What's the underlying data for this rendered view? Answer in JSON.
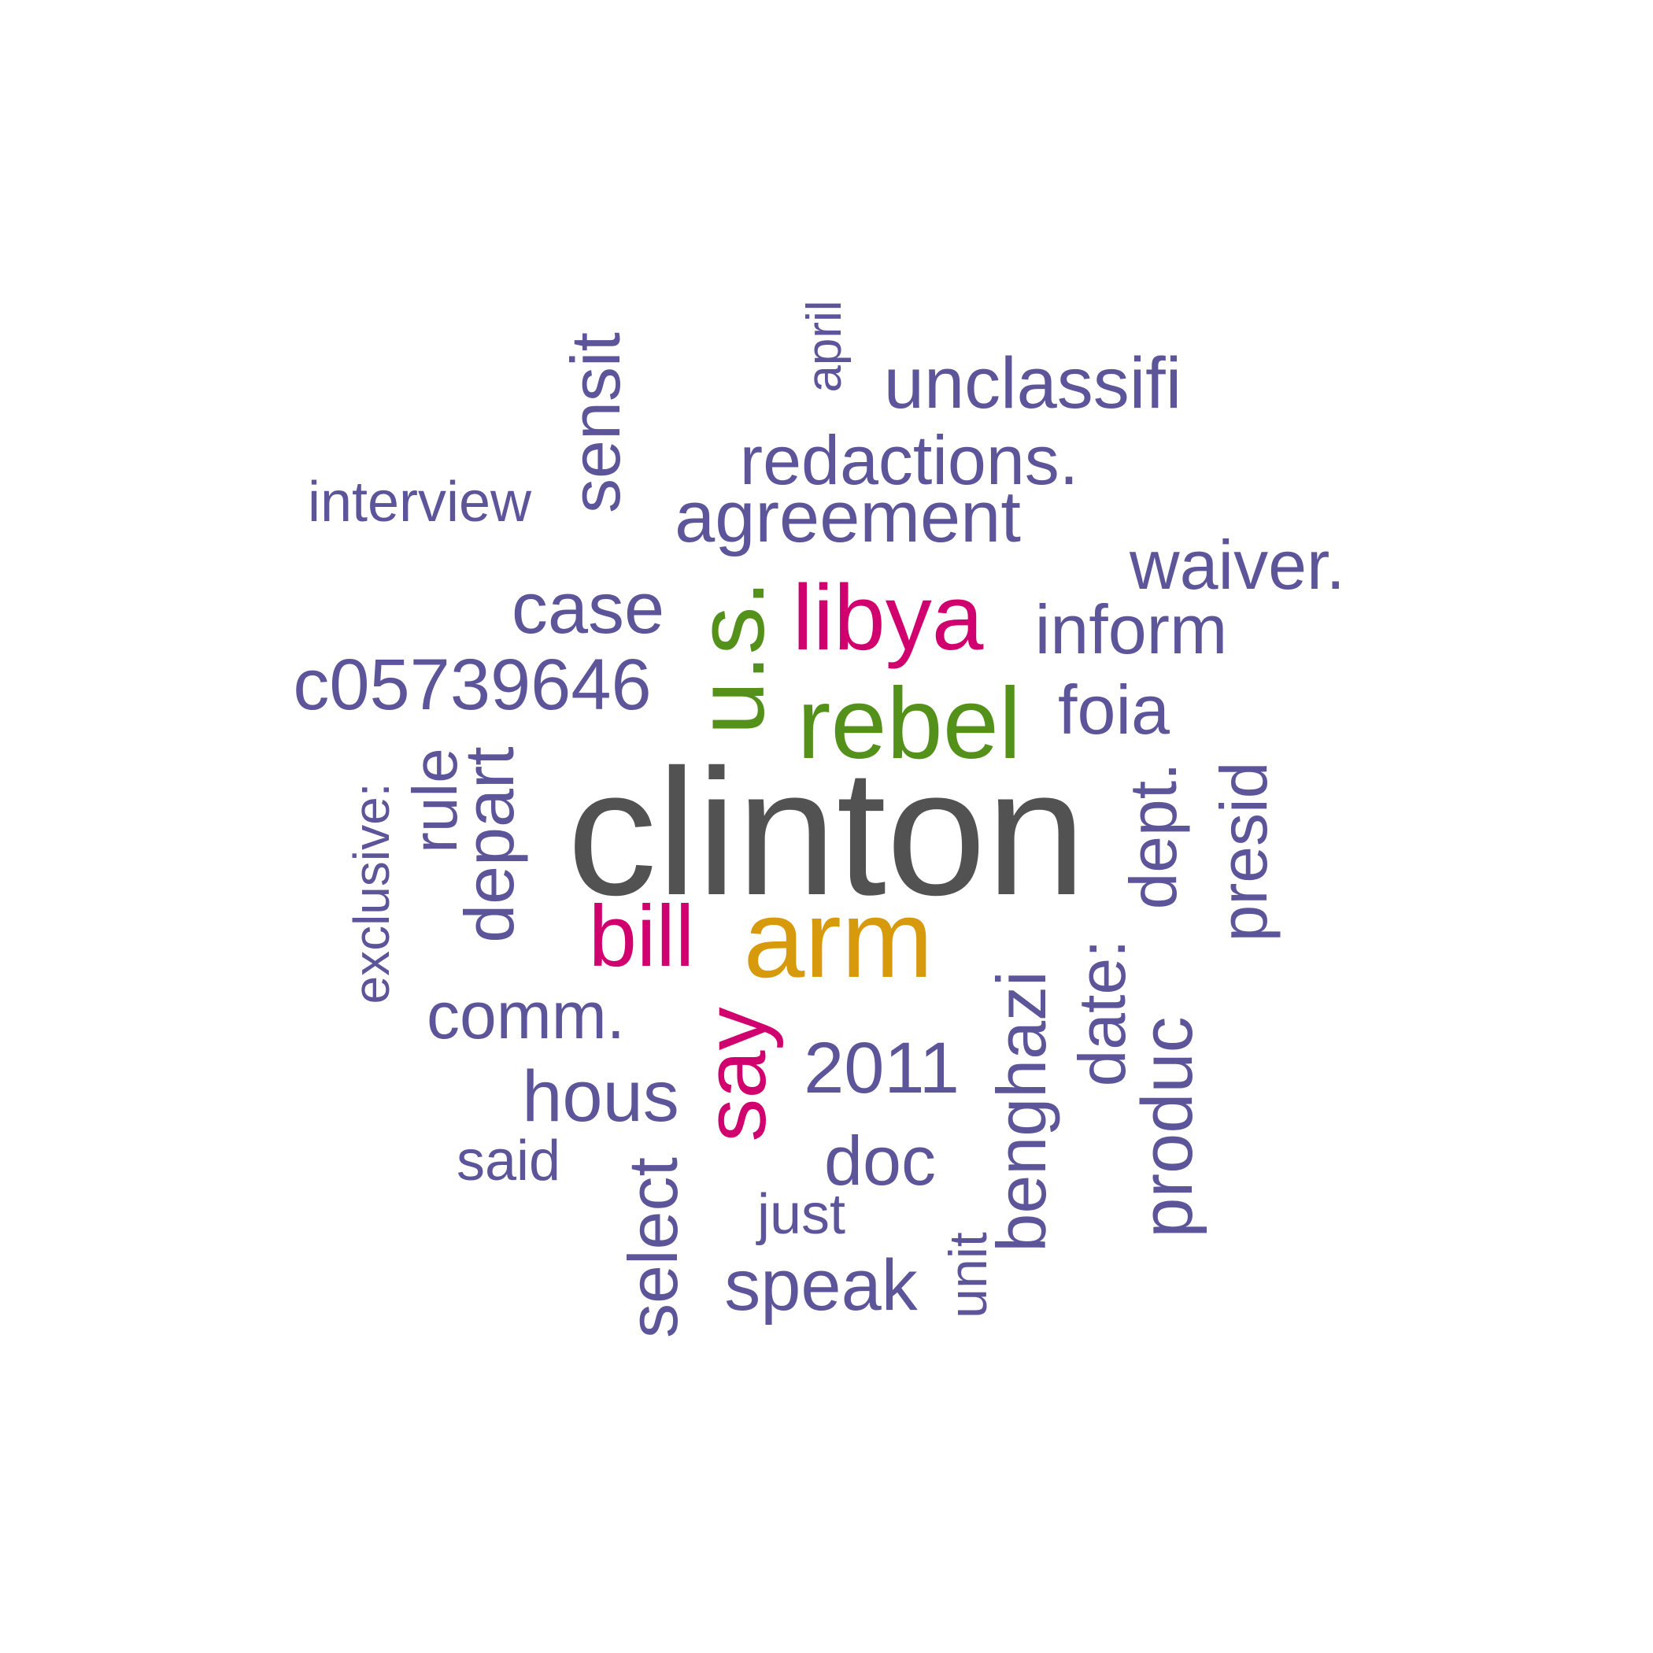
{
  "colors": {
    "primary": "#5c559a",
    "top": "#525252",
    "second": "#d69a0c",
    "third": "#54911a",
    "fourth": "#d1006f"
  },
  "words": [
    {
      "text": "clinton",
      "tier": "top",
      "orientation": "horizontal"
    },
    {
      "text": "arm",
      "tier": "second",
      "orientation": "horizontal"
    },
    {
      "text": "rebel",
      "tier": "third",
      "orientation": "horizontal"
    },
    {
      "text": "u.s.",
      "tier": "third",
      "orientation": "vertical"
    },
    {
      "text": "libya",
      "tier": "fourth",
      "orientation": "horizontal"
    },
    {
      "text": "bill",
      "tier": "fourth",
      "orientation": "horizontal"
    },
    {
      "text": "say",
      "tier": "fourth",
      "orientation": "vertical"
    },
    {
      "text": "april",
      "tier": "primary",
      "orientation": "vertical"
    },
    {
      "text": "unclassifi",
      "tier": "primary",
      "orientation": "horizontal"
    },
    {
      "text": "sensit",
      "tier": "primary",
      "orientation": "vertical"
    },
    {
      "text": "redactions.",
      "tier": "primary",
      "orientation": "horizontal"
    },
    {
      "text": "interview",
      "tier": "primary",
      "orientation": "horizontal"
    },
    {
      "text": "agreement",
      "tier": "primary",
      "orientation": "horizontal"
    },
    {
      "text": "waiver.",
      "tier": "primary",
      "orientation": "horizontal"
    },
    {
      "text": "case",
      "tier": "primary",
      "orientation": "horizontal"
    },
    {
      "text": "inform",
      "tier": "primary",
      "orientation": "horizontal"
    },
    {
      "text": "c05739646",
      "tier": "primary",
      "orientation": "horizontal"
    },
    {
      "text": "foia",
      "tier": "primary",
      "orientation": "horizontal"
    },
    {
      "text": "exclusive:",
      "tier": "primary",
      "orientation": "vertical"
    },
    {
      "text": "rule",
      "tier": "primary",
      "orientation": "vertical"
    },
    {
      "text": "depart",
      "tier": "primary",
      "orientation": "vertical"
    },
    {
      "text": "dept.",
      "tier": "primary",
      "orientation": "vertical"
    },
    {
      "text": "presid",
      "tier": "primary",
      "orientation": "vertical"
    },
    {
      "text": "comm.",
      "tier": "primary",
      "orientation": "horizontal"
    },
    {
      "text": "benghazi",
      "tier": "primary",
      "orientation": "vertical"
    },
    {
      "text": "date:",
      "tier": "primary",
      "orientation": "vertical"
    },
    {
      "text": "2011",
      "tier": "primary",
      "orientation": "horizontal"
    },
    {
      "text": "produc",
      "tier": "primary",
      "orientation": "vertical"
    },
    {
      "text": "hous",
      "tier": "primary",
      "orientation": "horizontal"
    },
    {
      "text": "said",
      "tier": "primary",
      "orientation": "horizontal"
    },
    {
      "text": "doc",
      "tier": "primary",
      "orientation": "horizontal"
    },
    {
      "text": "select",
      "tier": "primary",
      "orientation": "vertical"
    },
    {
      "text": "just",
      "tier": "primary",
      "orientation": "horizontal"
    },
    {
      "text": "unit",
      "tier": "primary",
      "orientation": "vertical"
    },
    {
      "text": "speak",
      "tier": "primary",
      "orientation": "horizontal"
    }
  ]
}
